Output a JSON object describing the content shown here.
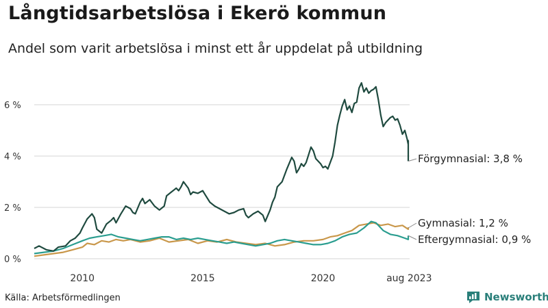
{
  "title": "Långtidsarbetslösa i Ekerö kommun",
  "subtitle": "Andel som varit arbetslösa i minst ett år uppdelat på utbildning",
  "source": "Källa: Arbetsförmedlingen",
  "brand": "Newsworthy",
  "colors": {
    "forgymnasial": "#1f4a3f",
    "gymnasial": "#c9974a",
    "eftergymnasial": "#2a9d8f",
    "brand": "#2a7f7a"
  },
  "chart_data": {
    "type": "line",
    "y_ticks": [
      "0 %",
      "2 %",
      "4 %",
      "6 %"
    ],
    "y_tick_values": [
      0,
      2,
      4,
      6
    ],
    "ylim": [
      0,
      7.2
    ],
    "x_ticks": [
      "2010",
      "2015",
      "2020",
      "aug 2023"
    ],
    "x_tick_values": [
      2010,
      2015,
      2020,
      2023.58
    ],
    "xlim": [
      2008.0,
      2023.6
    ],
    "grid": true,
    "series": [
      {
        "key": "forgymnasial",
        "label": "Förgymnasial: 3,8 %",
        "points": [
          [
            2008.0,
            0.4
          ],
          [
            2008.2,
            0.5
          ],
          [
            2008.5,
            0.35
          ],
          [
            2008.8,
            0.3
          ],
          [
            2009.0,
            0.45
          ],
          [
            2009.3,
            0.5
          ],
          [
            2009.5,
            0.7
          ],
          [
            2009.7,
            0.8
          ],
          [
            2009.9,
            1.0
          ],
          [
            2010.0,
            1.2
          ],
          [
            2010.2,
            1.55
          ],
          [
            2010.4,
            1.75
          ],
          [
            2010.5,
            1.6
          ],
          [
            2010.6,
            1.15
          ],
          [
            2010.8,
            1.0
          ],
          [
            2011.0,
            1.35
          ],
          [
            2011.2,
            1.5
          ],
          [
            2011.3,
            1.6
          ],
          [
            2011.4,
            1.4
          ],
          [
            2011.6,
            1.75
          ],
          [
            2011.8,
            2.05
          ],
          [
            2012.0,
            1.95
          ],
          [
            2012.1,
            1.8
          ],
          [
            2012.2,
            1.75
          ],
          [
            2012.4,
            2.2
          ],
          [
            2012.5,
            2.35
          ],
          [
            2012.6,
            2.15
          ],
          [
            2012.8,
            2.3
          ],
          [
            2013.0,
            2.05
          ],
          [
            2013.2,
            1.9
          ],
          [
            2013.4,
            2.05
          ],
          [
            2013.5,
            2.45
          ],
          [
            2013.7,
            2.6
          ],
          [
            2013.9,
            2.75
          ],
          [
            2014.0,
            2.65
          ],
          [
            2014.1,
            2.8
          ],
          [
            2014.2,
            3.0
          ],
          [
            2014.4,
            2.75
          ],
          [
            2014.5,
            2.5
          ],
          [
            2014.6,
            2.6
          ],
          [
            2014.8,
            2.55
          ],
          [
            2015.0,
            2.65
          ],
          [
            2015.1,
            2.5
          ],
          [
            2015.3,
            2.2
          ],
          [
            2015.5,
            2.05
          ],
          [
            2015.7,
            1.95
          ],
          [
            2015.9,
            1.85
          ],
          [
            2016.1,
            1.75
          ],
          [
            2016.3,
            1.8
          ],
          [
            2016.5,
            1.9
          ],
          [
            2016.7,
            1.95
          ],
          [
            2016.8,
            1.7
          ],
          [
            2016.9,
            1.6
          ],
          [
            2017.1,
            1.75
          ],
          [
            2017.3,
            1.85
          ],
          [
            2017.5,
            1.7
          ],
          [
            2017.6,
            1.45
          ],
          [
            2017.8,
            1.9
          ],
          [
            2017.9,
            2.2
          ],
          [
            2018.0,
            2.4
          ],
          [
            2018.1,
            2.8
          ],
          [
            2018.3,
            3.0
          ],
          [
            2018.5,
            3.5
          ],
          [
            2018.7,
            3.95
          ],
          [
            2018.8,
            3.8
          ],
          [
            2018.9,
            3.35
          ],
          [
            2019.0,
            3.5
          ],
          [
            2019.1,
            3.7
          ],
          [
            2019.2,
            3.6
          ],
          [
            2019.3,
            3.75
          ],
          [
            2019.4,
            4.05
          ],
          [
            2019.5,
            4.35
          ],
          [
            2019.6,
            4.2
          ],
          [
            2019.7,
            3.9
          ],
          [
            2019.9,
            3.7
          ],
          [
            2020.0,
            3.55
          ],
          [
            2020.1,
            3.6
          ],
          [
            2020.2,
            3.5
          ],
          [
            2020.3,
            3.75
          ],
          [
            2020.4,
            4.0
          ],
          [
            2020.5,
            4.55
          ],
          [
            2020.6,
            5.2
          ],
          [
            2020.7,
            5.6
          ],
          [
            2020.8,
            5.95
          ],
          [
            2020.9,
            6.2
          ],
          [
            2021.0,
            5.8
          ],
          [
            2021.1,
            5.95
          ],
          [
            2021.2,
            5.7
          ],
          [
            2021.3,
            6.05
          ],
          [
            2021.4,
            6.1
          ],
          [
            2021.5,
            6.65
          ],
          [
            2021.6,
            6.85
          ],
          [
            2021.7,
            6.5
          ],
          [
            2021.8,
            6.65
          ],
          [
            2021.9,
            6.45
          ],
          [
            2022.0,
            6.55
          ],
          [
            2022.1,
            6.6
          ],
          [
            2022.2,
            6.7
          ],
          [
            2022.3,
            6.2
          ],
          [
            2022.4,
            5.6
          ],
          [
            2022.5,
            5.15
          ],
          [
            2022.6,
            5.3
          ],
          [
            2022.8,
            5.5
          ],
          [
            2022.9,
            5.55
          ],
          [
            2023.0,
            5.4
          ],
          [
            2023.1,
            5.45
          ],
          [
            2023.2,
            5.2
          ],
          [
            2023.3,
            4.85
          ],
          [
            2023.4,
            5.0
          ],
          [
            2023.5,
            4.65
          ],
          [
            2023.55,
            4.45
          ],
          [
            2023.6,
            4.35
          ],
          [
            2023.7,
            4.6
          ],
          [
            2023.8,
            4.45
          ],
          [
            2023.9,
            4.3
          ],
          [
            2024.0,
            4.2
          ],
          [
            2024.05,
            4.0
          ],
          [
            2024.1,
            3.8
          ]
        ]
      },
      {
        "key": "gymnasial",
        "label": "Gymnasial: 1,2 %",
        "points": [
          [
            2008.0,
            0.1
          ],
          [
            2008.4,
            0.15
          ],
          [
            2008.8,
            0.2
          ],
          [
            2009.2,
            0.25
          ],
          [
            2009.6,
            0.35
          ],
          [
            2010.0,
            0.45
          ],
          [
            2010.2,
            0.6
          ],
          [
            2010.5,
            0.55
          ],
          [
            2010.8,
            0.7
          ],
          [
            2011.1,
            0.65
          ],
          [
            2011.4,
            0.75
          ],
          [
            2011.7,
            0.7
          ],
          [
            2012.0,
            0.75
          ],
          [
            2012.4,
            0.65
          ],
          [
            2012.8,
            0.7
          ],
          [
            2013.2,
            0.8
          ],
          [
            2013.6,
            0.65
          ],
          [
            2014.0,
            0.7
          ],
          [
            2014.4,
            0.75
          ],
          [
            2014.8,
            0.6
          ],
          [
            2015.2,
            0.7
          ],
          [
            2015.6,
            0.65
          ],
          [
            2016.0,
            0.75
          ],
          [
            2016.4,
            0.65
          ],
          [
            2016.8,
            0.6
          ],
          [
            2017.2,
            0.55
          ],
          [
            2017.6,
            0.6
          ],
          [
            2018.0,
            0.5
          ],
          [
            2018.4,
            0.55
          ],
          [
            2018.8,
            0.65
          ],
          [
            2019.2,
            0.7
          ],
          [
            2019.6,
            0.7
          ],
          [
            2020.0,
            0.75
          ],
          [
            2020.3,
            0.85
          ],
          [
            2020.6,
            0.9
          ],
          [
            2020.9,
            1.0
          ],
          [
            2021.2,
            1.1
          ],
          [
            2021.5,
            1.3
          ],
          [
            2021.8,
            1.35
          ],
          [
            2022.1,
            1.4
          ],
          [
            2022.4,
            1.3
          ],
          [
            2022.7,
            1.35
          ],
          [
            2023.0,
            1.25
          ],
          [
            2023.3,
            1.3
          ],
          [
            2023.6,
            1.15
          ],
          [
            2023.8,
            1.2
          ],
          [
            2024.1,
            1.15
          ]
        ]
      },
      {
        "key": "eftergymnasial",
        "label": "Eftergymnasial: 0,9 %",
        "points": [
          [
            2008.0,
            0.2
          ],
          [
            2008.4,
            0.25
          ],
          [
            2008.8,
            0.3
          ],
          [
            2009.2,
            0.4
          ],
          [
            2009.6,
            0.55
          ],
          [
            2010.0,
            0.7
          ],
          [
            2010.3,
            0.8
          ],
          [
            2010.6,
            0.85
          ],
          [
            2010.9,
            0.9
          ],
          [
            2011.2,
            0.95
          ],
          [
            2011.5,
            0.85
          ],
          [
            2011.8,
            0.8
          ],
          [
            2012.1,
            0.75
          ],
          [
            2012.4,
            0.7
          ],
          [
            2012.7,
            0.75
          ],
          [
            2013.0,
            0.8
          ],
          [
            2013.3,
            0.85
          ],
          [
            2013.6,
            0.85
          ],
          [
            2013.9,
            0.75
          ],
          [
            2014.2,
            0.8
          ],
          [
            2014.5,
            0.75
          ],
          [
            2014.8,
            0.8
          ],
          [
            2015.1,
            0.75
          ],
          [
            2015.4,
            0.7
          ],
          [
            2015.7,
            0.65
          ],
          [
            2016.0,
            0.6
          ],
          [
            2016.3,
            0.65
          ],
          [
            2016.6,
            0.6
          ],
          [
            2016.9,
            0.55
          ],
          [
            2017.2,
            0.5
          ],
          [
            2017.5,
            0.55
          ],
          [
            2017.8,
            0.6
          ],
          [
            2018.1,
            0.7
          ],
          [
            2018.4,
            0.75
          ],
          [
            2018.7,
            0.7
          ],
          [
            2019.0,
            0.65
          ],
          [
            2019.3,
            0.6
          ],
          [
            2019.6,
            0.55
          ],
          [
            2019.9,
            0.55
          ],
          [
            2020.2,
            0.6
          ],
          [
            2020.5,
            0.7
          ],
          [
            2020.8,
            0.85
          ],
          [
            2021.1,
            0.95
          ],
          [
            2021.4,
            1.0
          ],
          [
            2021.7,
            1.2
          ],
          [
            2022.0,
            1.45
          ],
          [
            2022.2,
            1.4
          ],
          [
            2022.5,
            1.1
          ],
          [
            2022.8,
            0.95
          ],
          [
            2023.1,
            0.9
          ],
          [
            2023.4,
            0.8
          ],
          [
            2023.7,
            0.75
          ],
          [
            2024.1,
            0.9
          ]
        ]
      }
    ]
  }
}
